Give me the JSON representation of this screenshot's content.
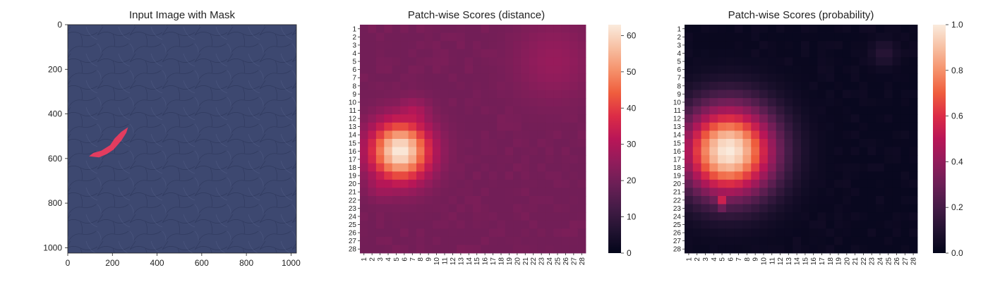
{
  "colors": {
    "leather": "#3d4870",
    "leather_light": "#4f5b86",
    "mask": "#ff3b5c"
  },
  "chart_data": [
    {
      "type": "image",
      "title": "Input Image with Mask",
      "xlabel": "",
      "ylabel": "",
      "xlim": [
        0,
        1024
      ],
      "ylim": [
        1024,
        0
      ],
      "xticks": [
        "0",
        "200",
        "400",
        "600",
        "800",
        "1000"
      ],
      "yticks": [
        "0",
        "200",
        "400",
        "600",
        "800",
        "1000"
      ],
      "mask_polygon": [
        [
          270,
          460
        ],
        [
          240,
          480
        ],
        [
          210,
          510
        ],
        [
          190,
          540
        ],
        [
          150,
          565
        ],
        [
          115,
          575
        ],
        [
          95,
          590
        ],
        [
          140,
          595
        ],
        [
          175,
          580
        ],
        [
          205,
          560
        ],
        [
          240,
          520
        ],
        [
          262,
          485
        ]
      ]
    },
    {
      "type": "heatmap",
      "title": "Patch-wise Scores (distance)",
      "xlabel": "",
      "ylabel": "",
      "x_labels": [
        "1",
        "2",
        "3",
        "4",
        "5",
        "6",
        "7",
        "8",
        "9",
        "10",
        "11",
        "12",
        "13",
        "14",
        "15",
        "16",
        "17",
        "18",
        "19",
        "20",
        "21",
        "22",
        "23",
        "24",
        "25",
        "26",
        "27",
        "28"
      ],
      "y_labels": [
        "1",
        "2",
        "3",
        "4",
        "5",
        "6",
        "7",
        "8",
        "9",
        "10",
        "11",
        "12",
        "13",
        "14",
        "15",
        "16",
        "17",
        "18",
        "19",
        "20",
        "21",
        "22",
        "23",
        "24",
        "25",
        "26",
        "27",
        "28"
      ],
      "vmin": 0,
      "vmax": 63,
      "colorbar_ticks": [
        "0",
        "10",
        "20",
        "30",
        "40",
        "50",
        "60"
      ],
      "baseline": 20,
      "hotspots": [
        {
          "row": 16,
          "col": 5.5,
          "peak": 63,
          "radius": 2.6
        },
        {
          "row": 12,
          "col": 7,
          "peak": 33,
          "radius": 1.6
        },
        {
          "row": 19.5,
          "col": 3.5,
          "peak": 32,
          "radius": 1.6
        },
        {
          "row": 5,
          "col": 24.5,
          "peak": 26,
          "radius": 3.5
        }
      ]
    },
    {
      "type": "heatmap",
      "title": "Patch-wise Scores (probability)",
      "xlabel": "",
      "ylabel": "",
      "x_labels": [
        "1",
        "2",
        "3",
        "4",
        "5",
        "6",
        "7",
        "8",
        "9",
        "10",
        "11",
        "12",
        "13",
        "14",
        "15",
        "16",
        "17",
        "18",
        "19",
        "20",
        "21",
        "22",
        "23",
        "24",
        "25",
        "26",
        "27",
        "28"
      ],
      "y_labels": [
        "1",
        "2",
        "3",
        "4",
        "5",
        "6",
        "7",
        "8",
        "9",
        "10",
        "11",
        "12",
        "13",
        "14",
        "15",
        "16",
        "17",
        "18",
        "19",
        "20",
        "21",
        "22",
        "23",
        "24",
        "25",
        "26",
        "27",
        "28"
      ],
      "vmin": 0.0,
      "vmax": 1.0,
      "colorbar_ticks": [
        "0.0",
        "0.2",
        "0.4",
        "0.6",
        "0.8",
        "1.0"
      ],
      "baseline": 0.02,
      "hotspots": [
        {
          "row": 16,
          "col": 5.8,
          "peak": 1.0,
          "radius": 3.9
        },
        {
          "row": 22,
          "col": 5,
          "peak": 0.55,
          "radius": 0.9
        },
        {
          "row": 4,
          "col": 24.5,
          "peak": 0.12,
          "radius": 1.2
        }
      ]
    }
  ]
}
